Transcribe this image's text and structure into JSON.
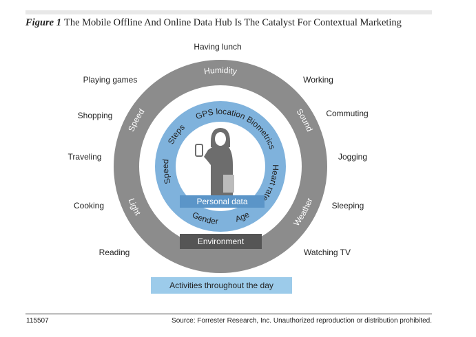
{
  "title": {
    "figure_label": "Figure 1",
    "text": "The Mobile Offline And Online Data Hub Is The Catalyst For Contextual Marketing"
  },
  "activities": [
    "Having lunch",
    "Playing games",
    "Working",
    "Shopping",
    "Commuting",
    "Traveling",
    "Jogging",
    "Cooking",
    "Sleeping",
    "Reading",
    "Watching TV"
  ],
  "environment_ring": {
    "label": "Environment",
    "items": [
      "Humidity",
      "Speed",
      "Sound",
      "Light",
      "Weather"
    ]
  },
  "personal_ring": {
    "label": "Personal data",
    "items": [
      "GPS location",
      "Steps",
      "Biometrics",
      "Heart rate",
      "Speed",
      "Gender",
      "Age"
    ]
  },
  "activities_label": "Activities throughout the day",
  "footer": {
    "id": "115507",
    "source": "Source: Forrester Research, Inc. Unauthorized reproduction or distribution prohibited."
  },
  "colors": {
    "outer_ring": "#8c8c8c",
    "inner_ring": "#7fb2dc",
    "personal_bar": "#5b95c8",
    "environment_bar": "#555555",
    "activities_bar": "#9ccbea",
    "person_icon": "#6d6d6d"
  }
}
